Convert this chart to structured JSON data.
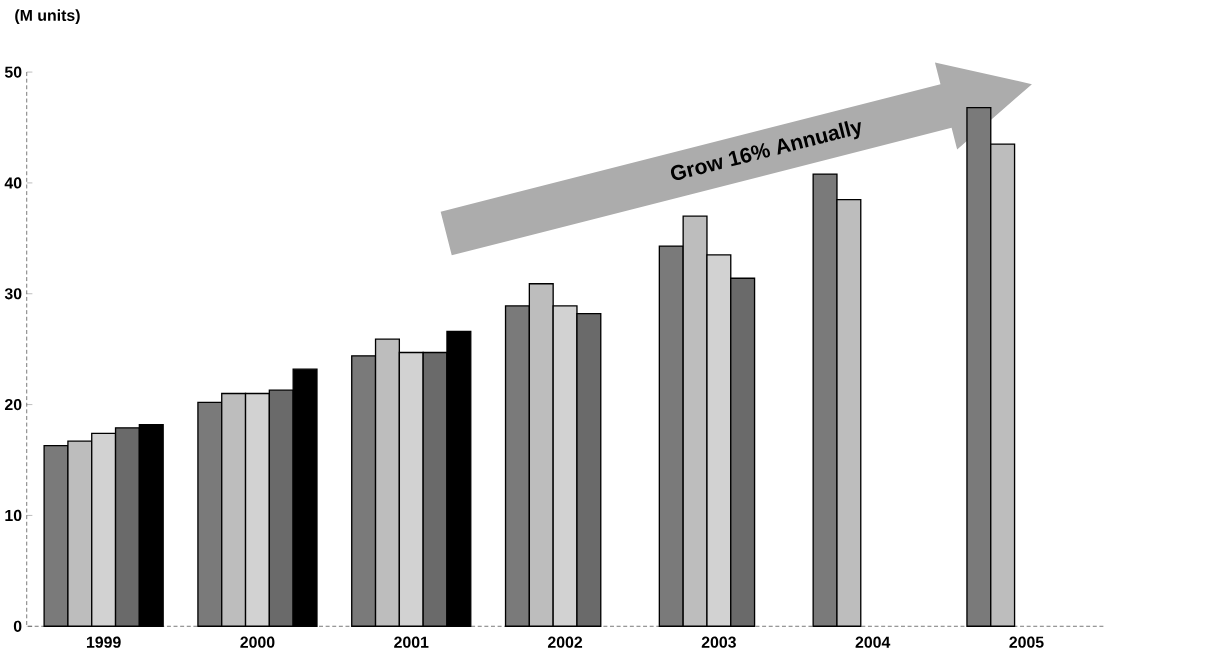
{
  "chart_data": {
    "type": "bar",
    "ylabel": "(M units)",
    "categories": [
      "1999",
      "2000",
      "2001",
      "2002",
      "2003",
      "2004",
      "2005"
    ],
    "series": [
      {
        "color": "#7a7a7a",
        "values": [
          16.3,
          20.2,
          24.4,
          28.9,
          34.3,
          40.8,
          46.8
        ]
      },
      {
        "color": "#bdbdbd",
        "values": [
          16.7,
          21.0,
          25.9,
          30.9,
          37.0,
          38.5,
          43.5
        ]
      },
      {
        "color": "#d2d2d2",
        "values": [
          17.4,
          21.0,
          24.7,
          28.9,
          33.5,
          null,
          null
        ]
      },
      {
        "color": "#6a6a6a",
        "values": [
          17.9,
          21.3,
          24.7,
          28.2,
          31.4,
          null,
          null
        ]
      },
      {
        "color": "#000000",
        "values": [
          18.2,
          23.2,
          26.6,
          null,
          null,
          null,
          null
        ]
      }
    ],
    "ylim": [
      0,
      50
    ],
    "yticks": [
      0,
      10,
      20,
      30,
      40,
      50
    ],
    "grid": false,
    "annotations": [
      "Grow 16% Annually"
    ]
  }
}
